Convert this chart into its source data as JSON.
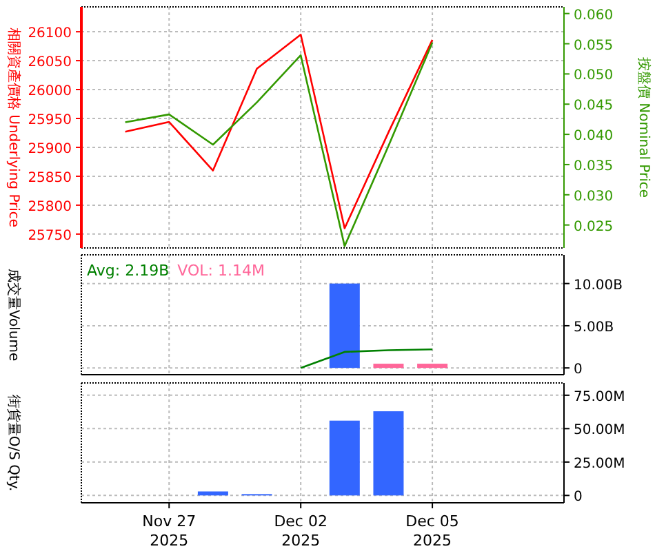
{
  "chart_data": [
    {
      "type": "line",
      "ylabel": "相關資產價格 Underlying Price",
      "y2label": "按盤價 Nominal Price",
      "categories": [
        null,
        null,
        null,
        null,
        null,
        null,
        null,
        null,
        null,
        null,
        null,
        null
      ],
      "series": [
        {
          "color": "#ff0000",
          "values": [
            null,
            25927,
            25944,
            25860,
            26036,
            26095,
            25760,
            25926,
            26086,
            null,
            null,
            null
          ]
        },
        {
          "color": "#339900",
          "axis": "y2",
          "values": [
            null,
            0.042,
            0.0433,
            0.0383,
            0.0453,
            0.0531,
            0.0215,
            0.0381,
            0.0552,
            null,
            null,
            null
          ]
        }
      ],
      "ylim": [
        25726,
        26143
      ],
      "yticks": [
        25750,
        25800,
        25850,
        25900,
        25950,
        26000,
        26050,
        26100
      ],
      "y2lim": [
        0.0212,
        0.0611
      ],
      "y2ticks": [
        {
          "value": 0.025,
          "label": "0.025"
        },
        {
          "value": 0.03,
          "label": "0.030"
        },
        {
          "value": 0.035,
          "label": "0.035"
        },
        {
          "value": 0.04,
          "label": "0.040"
        },
        {
          "value": 0.045,
          "label": "0.045"
        },
        {
          "value": 0.05,
          "label": "0.050"
        },
        {
          "value": 0.055,
          "label": "0.055"
        },
        {
          "value": 0.06,
          "label": "0.060"
        }
      ],
      "grid": true
    },
    {
      "type": "bar",
      "ylabel": "成交量Volume",
      "categories": [
        null,
        null,
        null,
        null,
        null,
        null,
        null,
        null,
        null,
        null,
        null,
        null
      ],
      "series": [
        {
          "color": "#3366ff",
          "values": [
            null,
            null,
            null,
            null,
            null,
            null,
            10.0,
            null,
            null,
            null,
            null,
            null
          ]
        },
        {
          "color": "#ff6699",
          "values": [
            null,
            null,
            null,
            null,
            null,
            null,
            null,
            0.5,
            0.5,
            null,
            null,
            null
          ]
        },
        {
          "color": "#008000",
          "type": "line",
          "values": [
            null,
            null,
            null,
            null,
            null,
            0,
            1.9,
            2.1,
            2.2,
            null,
            null,
            null
          ]
        }
      ],
      "annotations": [
        "Avg: 2.19B",
        "VOL: 1.14M"
      ],
      "ylim": [
        -0.8,
        13.4
      ],
      "yticks": [
        {
          "value": 0,
          "label": "0"
        },
        {
          "value": 5,
          "label": "5.00B"
        },
        {
          "value": 10,
          "label": "10.00B"
        }
      ],
      "grid": true
    },
    {
      "type": "bar",
      "ylabel": "街貨量O/S Qty.",
      "categories": [
        null,
        null,
        "Nov 27\n2025",
        null,
        null,
        "Dec 02\n2025",
        null,
        null,
        "Dec 05\n2025",
        null,
        null,
        null
      ],
      "series": [
        {
          "color": "#3366ff",
          "values": [
            null,
            null,
            null,
            3,
            1,
            null,
            56,
            63,
            null,
            null,
            null,
            null
          ]
        }
      ],
      "ylim": [
        -5.5,
        84.2
      ],
      "yticks": [
        {
          "value": 0,
          "label": "0"
        },
        {
          "value": 25,
          "label": "25.00M"
        },
        {
          "value": 50,
          "label": "50.00M"
        },
        {
          "value": 75,
          "label": "75.00M"
        }
      ],
      "grid": true
    }
  ]
}
